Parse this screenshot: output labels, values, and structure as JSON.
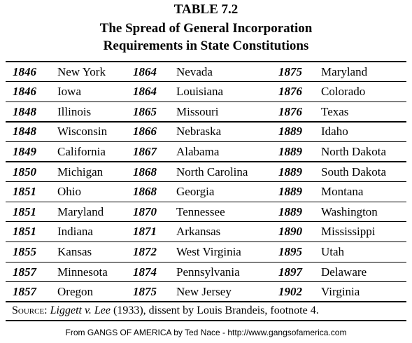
{
  "header": {
    "label": "TABLE 7.2",
    "title_line1": "The Spread of General Incorporation",
    "title_line2": "Requirements in State Constitutions"
  },
  "table": {
    "rows": [
      [
        "1846",
        "New York",
        "1864",
        "Nevada",
        "1875",
        "Maryland"
      ],
      [
        "1846",
        "Iowa",
        "1864",
        "Louisiana",
        "1876",
        "Colorado"
      ],
      [
        "1848",
        "Illinois",
        "1865",
        "Missouri",
        "1876",
        "Texas"
      ],
      [
        "1848",
        "Wisconsin",
        "1866",
        "Nebraska",
        "1889",
        "Idaho"
      ],
      [
        "1849",
        "California",
        "1867",
        "Alabama",
        "1889",
        "North Dakota"
      ],
      [
        "1850",
        "Michigan",
        "1868",
        "North Carolina",
        "1889",
        "South Dakota"
      ],
      [
        "1851",
        "Ohio",
        "1868",
        "Georgia",
        "1889",
        "Montana"
      ],
      [
        "1851",
        "Maryland",
        "1870",
        "Tennessee",
        "1889",
        "Washington"
      ],
      [
        "1851",
        "Indiana",
        "1871",
        "Arkansas",
        "1890",
        "Mississippi"
      ],
      [
        "1855",
        "Kansas",
        "1872",
        "West Virginia",
        "1895",
        "Utah"
      ],
      [
        "1857",
        "Minnesota",
        "1874",
        "Pennsylvania",
        "1897",
        "Delaware"
      ],
      [
        "1857",
        "Oregon",
        "1875",
        "New Jersey",
        "1902",
        "Virginia"
      ]
    ]
  },
  "source": {
    "label": "Source:",
    "case": "Liggett v. Lee",
    "text": " (1933), dissent by Louis Brandeis, footnote 4."
  },
  "footer": "From GANGS OF AMERICA by Ted Nace - http://www.gangsofamerica.com"
}
